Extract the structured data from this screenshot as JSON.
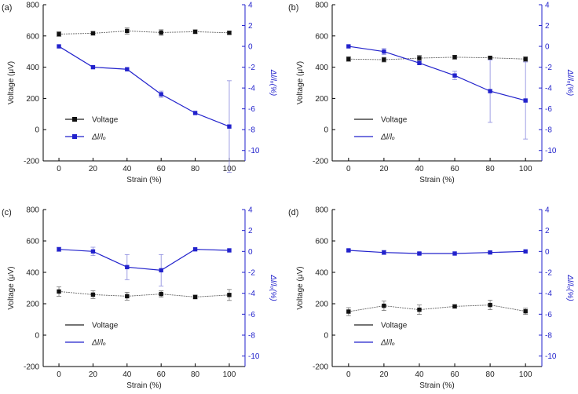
{
  "chart_data": [
    {
      "type": "line",
      "panel_label": "(a)",
      "x": [
        0,
        20,
        40,
        60,
        80,
        100
      ],
      "xlabel": "Strain (%)",
      "ylabel": "Voltage (μV)",
      "y2label": "Δl/lₒ(%)",
      "ylim": [
        -200,
        800
      ],
      "y2lim": [
        -11,
        4
      ],
      "xticks": [
        "0",
        "20",
        "40",
        "60",
        "80",
        "100"
      ],
      "yticks": [
        "-200",
        "0",
        "200",
        "400",
        "600",
        "800"
      ],
      "y2ticks": [
        "-10",
        "-8",
        "-6",
        "-4",
        "-2",
        "0",
        "2",
        "4"
      ],
      "legend": {
        "position": "bottom-left",
        "voltage_label": "Voltage",
        "strain_label": "Δl/lₒ",
        "markers": true
      },
      "series": [
        {
          "name": "Voltage",
          "axis": "left",
          "color": "#555555",
          "values": [
            612,
            617,
            632,
            622,
            627,
            620
          ],
          "errors": [
            15,
            12,
            20,
            18,
            12,
            10
          ]
        },
        {
          "name": "Δl/lₒ",
          "axis": "right",
          "color": "#2222cc",
          "values": [
            0,
            -2.0,
            -2.2,
            -4.6,
            -6.4,
            -7.7
          ],
          "errors": [
            0,
            0,
            0,
            0.3,
            0,
            4.4
          ]
        }
      ]
    },
    {
      "type": "line",
      "panel_label": "(b)",
      "x": [
        0,
        20,
        40,
        60,
        80,
        100
      ],
      "xlabel": "Strain (%)",
      "ylabel": "Voltage (μV)",
      "y2label": "Δl/lₒ(%)",
      "ylim": [
        -200,
        800
      ],
      "y2lim": [
        -11,
        4
      ],
      "xticks": [
        "0",
        "20",
        "40",
        "60",
        "80",
        "100"
      ],
      "yticks": [
        "-200",
        "0",
        "200",
        "400",
        "600",
        "800"
      ],
      "y2ticks": [
        "-10",
        "-8",
        "-6",
        "-4",
        "-2",
        "0",
        "2",
        "4"
      ],
      "legend": {
        "position": "bottom-left",
        "voltage_label": "Voltage",
        "strain_label": "Δl/lₒ",
        "markers": false
      },
      "series": [
        {
          "name": "Voltage",
          "axis": "left",
          "color": "#555555",
          "values": [
            452,
            448,
            458,
            464,
            460,
            452
          ],
          "errors": [
            15,
            15,
            18,
            12,
            8,
            15
          ]
        },
        {
          "name": "Δl/lₒ",
          "axis": "right",
          "color": "#2222cc",
          "values": [
            0,
            -0.5,
            -1.6,
            -2.8,
            -4.3,
            -5.2
          ],
          "errors": [
            0,
            0.3,
            0,
            0.4,
            3.0,
            3.7
          ]
        }
      ]
    },
    {
      "type": "line",
      "panel_label": "(c)",
      "x": [
        0,
        20,
        40,
        60,
        80,
        100
      ],
      "xlabel": "Strain (%)",
      "ylabel": "Voltage (μV)",
      "y2label": "Δl/lₒ(%)",
      "ylim": [
        -200,
        800
      ],
      "y2lim": [
        -11,
        4
      ],
      "xticks": [
        "0",
        "20",
        "40",
        "60",
        "80",
        "100"
      ],
      "yticks": [
        "-200",
        "0",
        "200",
        "400",
        "600",
        "800"
      ],
      "y2ticks": [
        "-10",
        "-8",
        "-6",
        "-4",
        "-2",
        "0",
        "2",
        "4"
      ],
      "legend": {
        "position": "bottom-left",
        "voltage_label": "Voltage",
        "strain_label": "Δl/lₒ",
        "markers": false
      },
      "series": [
        {
          "name": "Voltage",
          "axis": "left",
          "color": "#555555",
          "values": [
            278,
            258,
            248,
            262,
            243,
            256
          ],
          "errors": [
            30,
            25,
            25,
            20,
            12,
            35
          ]
        },
        {
          "name": "Δl/lₒ",
          "axis": "right",
          "color": "#2222cc",
          "values": [
            0.2,
            0,
            -1.5,
            -1.8,
            0.2,
            0.1
          ],
          "errors": [
            0.2,
            0.4,
            1.2,
            1.5,
            0,
            0
          ]
        }
      ]
    },
    {
      "type": "line",
      "panel_label": "(d)",
      "x": [
        0,
        20,
        40,
        60,
        80,
        100
      ],
      "xlabel": "Strain (%)",
      "ylabel": "Voltage (μV)",
      "y2label": "Δl/lₒ(%)",
      "ylim": [
        -200,
        800
      ],
      "y2lim": [
        -11,
        4
      ],
      "xticks": [
        "0",
        "20",
        "40",
        "60",
        "80",
        "100"
      ],
      "yticks": [
        "-200",
        "0",
        "200",
        "400",
        "600",
        "800"
      ],
      "y2ticks": [
        "-10",
        "-8",
        "-6",
        "-4",
        "-2",
        "0",
        "2",
        "4"
      ],
      "legend": {
        "position": "bottom-left",
        "voltage_label": "Voltage",
        "strain_label": "Δl/lₒ",
        "markers": false
      },
      "series": [
        {
          "name": "Voltage",
          "axis": "left",
          "color": "#555555",
          "values": [
            150,
            187,
            162,
            183,
            192,
            152
          ],
          "errors": [
            25,
            30,
            30,
            10,
            30,
            20
          ]
        },
        {
          "name": "Δl/lₒ",
          "axis": "right",
          "color": "#2222cc",
          "values": [
            0.1,
            -0.1,
            -0.2,
            -0.2,
            -0.1,
            0
          ],
          "errors": [
            0.1,
            0.2,
            0.1,
            0,
            0.1,
            0
          ]
        }
      ]
    }
  ]
}
